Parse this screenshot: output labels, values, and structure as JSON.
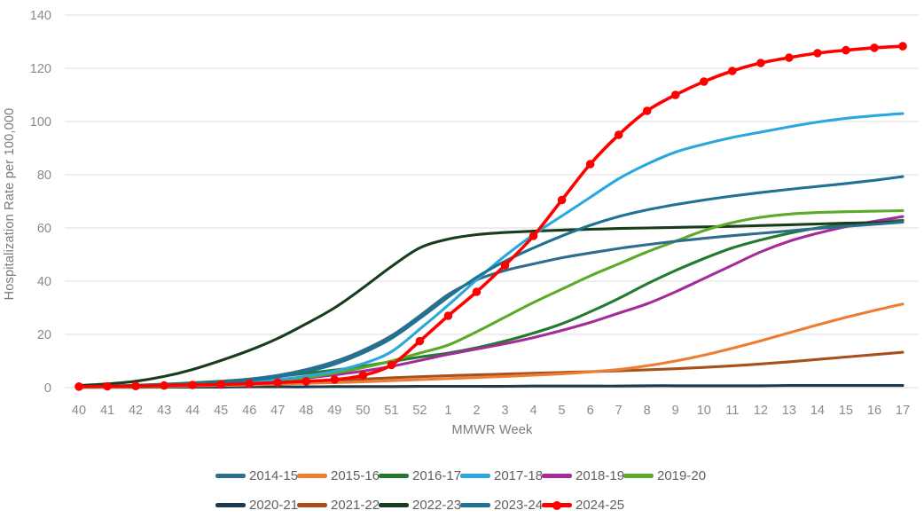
{
  "chart_data": {
    "type": "line",
    "title": "",
    "xlabel": "MMWR Week",
    "ylabel": "Hospitalization Rate per 100,000",
    "x_categories": [
      "40",
      "41",
      "42",
      "43",
      "44",
      "45",
      "46",
      "47",
      "48",
      "49",
      "50",
      "51",
      "52",
      "1",
      "2",
      "3",
      "4",
      "5",
      "6",
      "7",
      "8",
      "9",
      "10",
      "11",
      "12",
      "13",
      "14",
      "15",
      "16",
      "17"
    ],
    "ylim": [
      0,
      140
    ],
    "yticks": [
      0,
      20,
      40,
      60,
      80,
      100,
      120,
      140
    ],
    "grid": "horizontal",
    "grid_color": "#dcdcdc",
    "axis_text_color": "#8a8a8a",
    "legend_text_color": "#606060",
    "legend_position": "bottom",
    "series": [
      {
        "name": "2014-15",
        "color": "#2e6d8e",
        "marker": false,
        "values": [
          0.3,
          0.5,
          0.8,
          1.1,
          1.6,
          2.2,
          3.2,
          4.6,
          6.8,
          9.8,
          14,
          19.5,
          27,
          35,
          40.5,
          44,
          46.5,
          48.8,
          50.6,
          52.3,
          53.7,
          55,
          56.1,
          57.1,
          58,
          58.9,
          59.8,
          60.6,
          61.4,
          62.2
        ]
      },
      {
        "name": "2015-16",
        "color": "#ed7d31",
        "marker": false,
        "values": [
          0.1,
          0.2,
          0.3,
          0.4,
          0.6,
          0.8,
          1,
          1.3,
          1.6,
          1.9,
          2.2,
          2.6,
          3,
          3.4,
          3.8,
          4.2,
          4.7,
          5.2,
          5.9,
          6.8,
          8.2,
          10,
          12.2,
          14.8,
          17.6,
          20.6,
          23.6,
          26.4,
          29,
          31.4
        ]
      },
      {
        "name": "2016-17",
        "color": "#217a2f",
        "marker": false,
        "values": [
          0.4,
          0.6,
          0.9,
          1.3,
          1.8,
          2.4,
          3.2,
          4.2,
          5.4,
          6.6,
          8,
          9.8,
          11.5,
          13,
          15,
          17.5,
          20.5,
          24,
          28.5,
          33.5,
          39,
          44,
          48.5,
          52.5,
          55.5,
          58,
          60,
          61.3,
          62.2,
          62.9
        ]
      },
      {
        "name": "2017-18",
        "color": "#2aa7dc",
        "marker": false,
        "values": [
          0.3,
          0.4,
          0.6,
          0.8,
          1.1,
          1.5,
          2.1,
          3,
          4.3,
          6.2,
          9,
          13.5,
          22,
          31,
          40.5,
          49.5,
          57.5,
          64.5,
          71.5,
          78.5,
          84,
          88.5,
          91.5,
          94,
          96,
          98,
          99.8,
          101.2,
          102.2,
          103
        ]
      },
      {
        "name": "2018-19",
        "color": "#a32c9a",
        "marker": false,
        "values": [
          0.3,
          0.4,
          0.6,
          0.8,
          1.1,
          1.5,
          2,
          2.7,
          3.6,
          4.8,
          6.2,
          8,
          10.2,
          12.5,
          14.5,
          16.5,
          18.8,
          21.5,
          24.5,
          28,
          31.5,
          36,
          41,
          46,
          51,
          55,
          58,
          60.5,
          62.5,
          64.3
        ]
      },
      {
        "name": "2019-20",
        "color": "#5da928",
        "marker": false,
        "values": [
          0.2,
          0.3,
          0.5,
          0.7,
          1,
          1.4,
          1.9,
          2.7,
          3.8,
          5.5,
          7.5,
          10,
          13,
          16,
          21,
          26.5,
          32,
          37,
          42,
          46.5,
          51,
          55,
          59,
          62,
          64,
          65.2,
          65.8,
          66.1,
          66.3,
          66.5
        ]
      },
      {
        "name": "2020-21",
        "color": "#1b3a4f",
        "marker": false,
        "values": [
          0.1,
          0.1,
          0.1,
          0.2,
          0.2,
          0.2,
          0.3,
          0.3,
          0.3,
          0.4,
          0.4,
          0.4,
          0.5,
          0.5,
          0.5,
          0.5,
          0.6,
          0.6,
          0.6,
          0.6,
          0.7,
          0.7,
          0.7,
          0.7,
          0.7,
          0.8,
          0.8,
          0.8,
          0.8,
          0.8
        ]
      },
      {
        "name": "2021-22",
        "color": "#a8501c",
        "marker": false,
        "values": [
          0.1,
          0.2,
          0.4,
          0.6,
          0.8,
          1.1,
          1.4,
          1.8,
          2.2,
          2.7,
          3.2,
          3.7,
          4.1,
          4.5,
          4.8,
          5.1,
          5.4,
          5.7,
          6,
          6.3,
          6.7,
          7.1,
          7.6,
          8.2,
          8.9,
          9.7,
          10.6,
          11.5,
          12.4,
          13.3
        ]
      },
      {
        "name": "2022-23",
        "color": "#173d1e",
        "marker": false,
        "values": [
          0.8,
          1.4,
          2.4,
          4.2,
          6.8,
          10.2,
          14,
          18.5,
          24,
          30,
          37.5,
          45.5,
          52.5,
          55.8,
          57.5,
          58.3,
          58.8,
          59.2,
          59.5,
          59.8,
          60,
          60.2,
          60.4,
          60.6,
          60.9,
          61.2,
          61.5,
          61.8,
          62,
          62.3
        ]
      },
      {
        "name": "2023-24",
        "color": "#1f7291",
        "marker": false,
        "values": [
          0.3,
          0.5,
          0.7,
          1,
          1.4,
          2,
          2.8,
          4,
          6,
          8.8,
          13,
          18.5,
          26,
          34,
          41.5,
          47.5,
          52.5,
          57,
          61,
          64.3,
          66.8,
          68.8,
          70.5,
          72,
          73.3,
          74.5,
          75.6,
          76.7,
          77.9,
          79.3
        ]
      },
      {
        "name": "2024-25",
        "color": "#ff0000",
        "marker": true,
        "values": [
          0.4,
          0.5,
          0.6,
          0.8,
          1,
          1.2,
          1.5,
          1.9,
          2.4,
          3,
          4.6,
          8.5,
          17.5,
          27,
          36,
          46,
          57,
          70.5,
          84,
          95,
          104,
          110,
          115,
          119,
          122,
          124,
          125.7,
          126.8,
          127.7,
          128.3
        ]
      }
    ],
    "draw_order": [
      "2020-21",
      "2021-22",
      "2015-16",
      "2016-17",
      "2018-19",
      "2022-23",
      "2019-20",
      "2014-15",
      "2017-18",
      "2023-24",
      "2024-25"
    ]
  }
}
